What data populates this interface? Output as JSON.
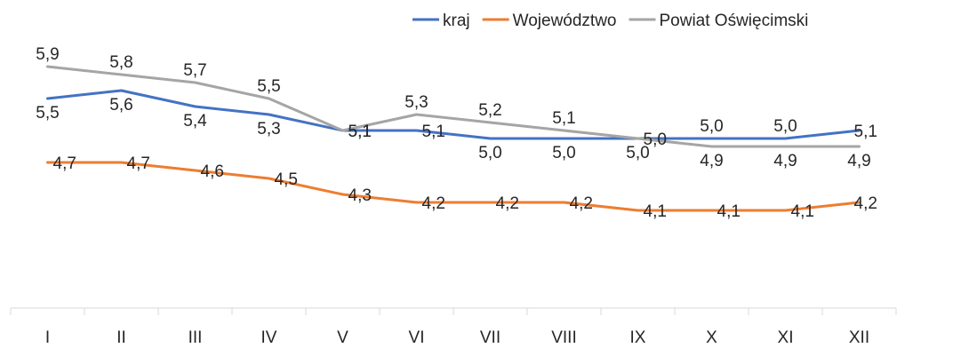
{
  "chart_data": {
    "type": "line",
    "categories": [
      "I",
      "II",
      "III",
      "IV",
      "V",
      "VI",
      "VII",
      "VIII",
      "IX",
      "X",
      "XI",
      "XII"
    ],
    "series": [
      {
        "name": "kraj",
        "color": "#4472C4",
        "values": [
          5.5,
          5.6,
          5.4,
          5.3,
          5.1,
          5.1,
          5.0,
          5.0,
          5.0,
          5.0,
          5.0,
          5.1
        ],
        "labels": [
          "5,5",
          "5,6",
          "5,4",
          "5,3",
          "5,1",
          "5,1",
          "5,0",
          "5,0",
          "5,0",
          "5,0",
          "5,0",
          "5,1"
        ]
      },
      {
        "name": "Województwo",
        "color": "#ED7D31",
        "values": [
          4.7,
          4.7,
          4.6,
          4.5,
          4.3,
          4.2,
          4.2,
          4.2,
          4.1,
          4.1,
          4.1,
          4.2
        ],
        "labels": [
          "4,7",
          "4,7",
          "4,6",
          "4,5",
          "4,3",
          "4,2",
          "4,2",
          "4,2",
          "4,1",
          "4,1",
          "4,1",
          "4,2"
        ]
      },
      {
        "name": "Powiat Oświęcimski",
        "color": "#A5A5A5",
        "values": [
          5.9,
          5.8,
          5.7,
          5.5,
          5.1,
          5.3,
          5.2,
          5.1,
          5.0,
          4.9,
          4.9,
          4.9
        ],
        "labels": [
          "5,9",
          "5,8",
          "5,7",
          "5,5",
          "5,1",
          "5,3",
          "5,2",
          "5,1",
          "5,0",
          "4,9",
          "4,9",
          "4,9"
        ]
      }
    ],
    "legend": "top-right",
    "grid": false
  }
}
